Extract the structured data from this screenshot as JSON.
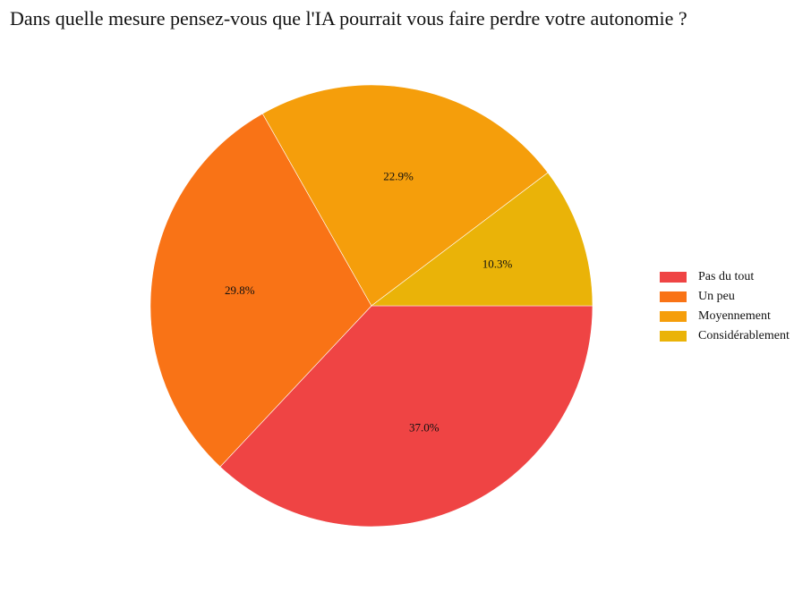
{
  "chart_data": {
    "type": "pie",
    "title": "Dans quelle mesure pensez-vous que l'IA pourrait vous faire perdre votre autonomie ?",
    "categories": [
      "Pas du tout",
      "Un peu",
      "Moyennement",
      "Considérablement"
    ],
    "values": [
      37.0,
      29.8,
      22.9,
      10.3
    ],
    "labels": [
      "37.0%",
      "29.8%",
      "22.9%",
      "10.3%"
    ],
    "colors": [
      "#ef4444",
      "#f97316",
      "#f59e0b",
      "#eab308"
    ],
    "start_angle_deg": 0,
    "direction": "clockwise",
    "legend_position": "right"
  }
}
